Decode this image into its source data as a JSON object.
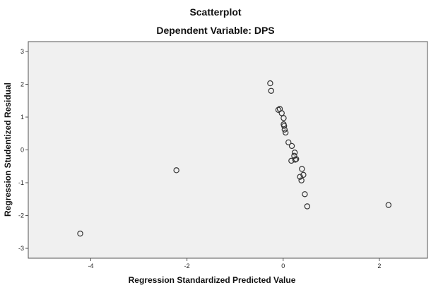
{
  "chart_data": {
    "type": "scatter",
    "title": "Scatterplot",
    "subtitle": "Dependent Variable: DPS",
    "xlabel": "Regression Standardized Predicted Value",
    "ylabel": "Regression Studentized Residual",
    "xlim": [
      -5.3,
      3.0
    ],
    "ylim": [
      -3.3,
      3.3
    ],
    "xticks": [
      -4,
      -2,
      0,
      2
    ],
    "xtick_labels": [
      "-4",
      "-2",
      "0",
      "2"
    ],
    "yticks": [
      -3,
      -2,
      -1,
      0,
      1,
      2,
      3
    ],
    "ytick_labels": [
      "-3",
      "-2",
      "-1",
      "0",
      "1",
      "2",
      "3"
    ],
    "grid": false,
    "plot_background": "#f0f0f0",
    "marker_color": "#333333",
    "marker": "open-circle",
    "points": [
      {
        "x": -0.27,
        "y": 2.03
      },
      {
        "x": -0.25,
        "y": 1.8
      },
      {
        "x": -0.1,
        "y": 1.22
      },
      {
        "x": -0.07,
        "y": 1.25
      },
      {
        "x": -0.03,
        "y": 1.12
      },
      {
        "x": 0.01,
        "y": 0.97
      },
      {
        "x": 0.01,
        "y": 0.78
      },
      {
        "x": 0.02,
        "y": 0.73
      },
      {
        "x": 0.03,
        "y": 0.62
      },
      {
        "x": 0.05,
        "y": 0.53
      },
      {
        "x": 0.11,
        "y": 0.23
      },
      {
        "x": 0.18,
        "y": 0.12
      },
      {
        "x": 0.24,
        "y": -0.08
      },
      {
        "x": 0.23,
        "y": -0.18
      },
      {
        "x": 0.25,
        "y": -0.3
      },
      {
        "x": 0.27,
        "y": -0.28
      },
      {
        "x": 0.17,
        "y": -0.33
      },
      {
        "x": 0.35,
        "y": -0.82
      },
      {
        "x": 0.38,
        "y": -0.93
      },
      {
        "x": 0.39,
        "y": -0.58
      },
      {
        "x": 0.42,
        "y": -0.76
      },
      {
        "x": 0.45,
        "y": -1.35
      },
      {
        "x": 0.5,
        "y": -1.72
      },
      {
        "x": -2.22,
        "y": -0.62
      },
      {
        "x": -4.22,
        "y": -2.55
      },
      {
        "x": 2.19,
        "y": -1.68
      }
    ]
  }
}
